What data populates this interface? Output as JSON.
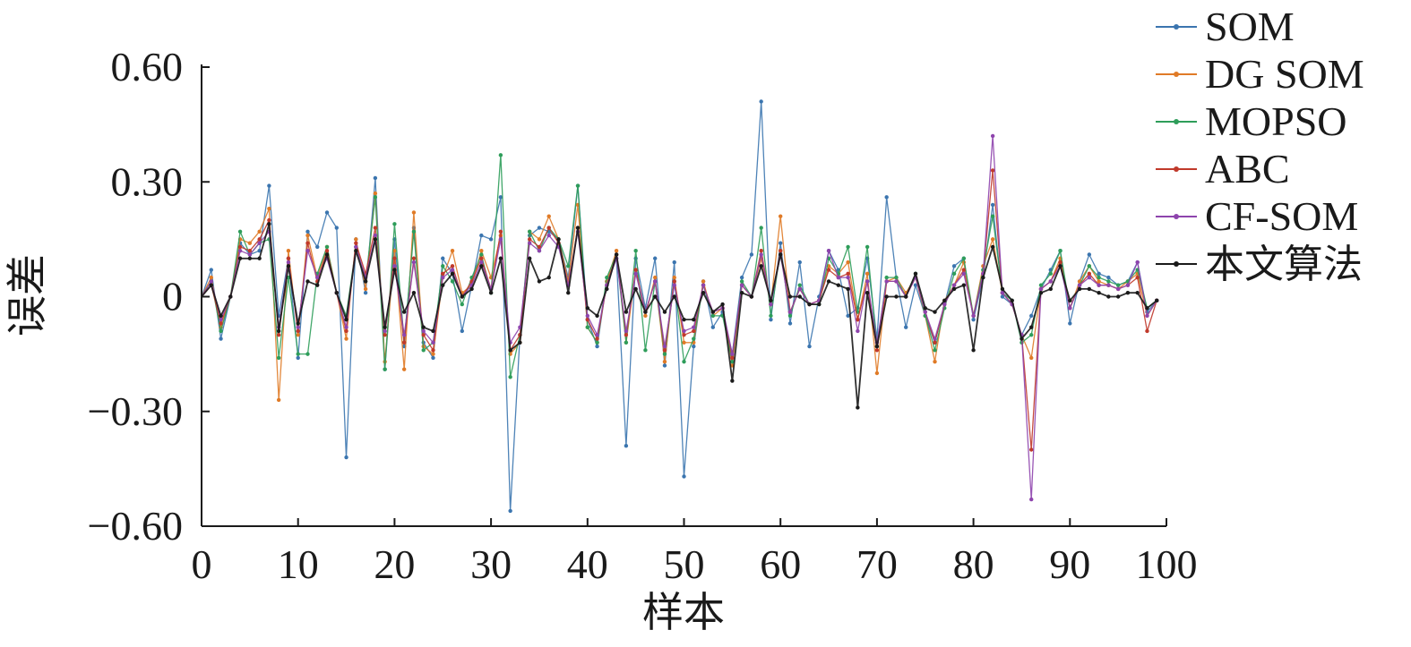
{
  "chart_data": {
    "type": "line",
    "title": "",
    "xlabel": "样本",
    "ylabel": "误差",
    "xlim": [
      0,
      100
    ],
    "ylim": [
      -0.6,
      0.6
    ],
    "xticks": [
      0,
      10,
      20,
      30,
      40,
      50,
      60,
      70,
      80,
      90,
      100
    ],
    "xtick_labels": [
      "0",
      "10",
      "20",
      "30",
      "40",
      "50",
      "60",
      "70",
      "80",
      "90",
      "100"
    ],
    "yticks": [
      0.6,
      0.3,
      0,
      -0.3,
      -0.6
    ],
    "ytick_labels": [
      "0.60",
      "0.30",
      "0",
      "−0.30",
      "−0.60"
    ],
    "grid": false,
    "legend_position": "top-right",
    "x": [
      1,
      2,
      3,
      4,
      5,
      6,
      7,
      8,
      9,
      10,
      11,
      12,
      13,
      14,
      15,
      16,
      17,
      18,
      19,
      20,
      21,
      22,
      23,
      24,
      25,
      26,
      27,
      28,
      29,
      30,
      31,
      32,
      33,
      34,
      35,
      36,
      37,
      38,
      39,
      40,
      41,
      42,
      43,
      44,
      45,
      46,
      47,
      48,
      49,
      50,
      51,
      52,
      53,
      54,
      55,
      56,
      57,
      58,
      59,
      60,
      61,
      62,
      63,
      64,
      65,
      66,
      67,
      68,
      69,
      70,
      71,
      72,
      73,
      74,
      75,
      76,
      77,
      78,
      79,
      80,
      81,
      82,
      83,
      84,
      85,
      86,
      87,
      88,
      89,
      90,
      91,
      92,
      93,
      94,
      95,
      96,
      97,
      98,
      99
    ],
    "series": [
      {
        "name": "SOM",
        "color": "#3b75af",
        "values": [
          0.07,
          -0.11,
          0.0,
          0.14,
          0.11,
          0.12,
          0.29,
          -0.05,
          0.1,
          -0.16,
          0.17,
          0.13,
          0.22,
          0.18,
          -0.42,
          0.15,
          0.01,
          0.31,
          -0.19,
          0.15,
          -0.13,
          0.18,
          -0.12,
          -0.16,
          0.1,
          0.06,
          -0.09,
          0.03,
          0.16,
          0.15,
          0.26,
          -0.56,
          -0.1,
          0.16,
          0.18,
          0.17,
          0.15,
          0.05,
          0.29,
          -0.06,
          -0.13,
          0.04,
          0.1,
          -0.39,
          0.1,
          -0.03,
          0.1,
          -0.18,
          0.09,
          -0.47,
          -0.13,
          0.04,
          -0.08,
          -0.04,
          -0.15,
          0.05,
          0.11,
          0.51,
          -0.06,
          0.14,
          -0.07,
          0.09,
          -0.13,
          0.0,
          0.12,
          0.07,
          -0.05,
          -0.03,
          0.1,
          -0.11,
          0.26,
          0.05,
          -0.08,
          0.03,
          -0.05,
          -0.12,
          -0.02,
          0.08,
          0.1,
          -0.06,
          0.05,
          0.24,
          0.0,
          -0.02,
          -0.1,
          -0.05,
          0.02,
          0.07,
          0.12,
          -0.07,
          0.04,
          0.11,
          0.06,
          0.05,
          0.03,
          0.04,
          0.09,
          -0.04,
          -0.01
        ]
      },
      {
        "name": "DG SOM",
        "color": "#e07b27",
        "values": [
          0.05,
          -0.08,
          0.0,
          0.15,
          0.14,
          0.17,
          0.23,
          -0.27,
          0.12,
          -0.1,
          0.16,
          0.05,
          0.13,
          0.01,
          -0.11,
          0.15,
          0.02,
          0.27,
          -0.17,
          0.12,
          -0.19,
          0.22,
          -0.13,
          -0.15,
          0.05,
          0.12,
          0.01,
          0.03,
          0.12,
          0.05,
          0.16,
          -0.15,
          -0.12,
          0.17,
          0.15,
          0.21,
          0.15,
          0.04,
          0.24,
          -0.08,
          -0.12,
          0.04,
          0.12,
          -0.12,
          0.07,
          -0.05,
          0.05,
          -0.17,
          0.05,
          -0.12,
          -0.12,
          0.04,
          -0.05,
          -0.03,
          -0.18,
          0.03,
          0.0,
          0.1,
          -0.02,
          0.21,
          -0.04,
          0.02,
          -0.02,
          -0.01,
          0.08,
          0.06,
          0.09,
          -0.06,
          0.06,
          -0.2,
          0.04,
          0.05,
          0.01,
          0.05,
          -0.05,
          -0.17,
          -0.01,
          0.03,
          0.09,
          -0.05,
          0.08,
          0.15,
          0.01,
          -0.02,
          -0.1,
          -0.16,
          0.02,
          0.04,
          0.1,
          -0.03,
          0.04,
          0.08,
          0.04,
          0.03,
          0.02,
          0.04,
          0.06,
          -0.05,
          -0.01
        ]
      },
      {
        "name": "MOPSO",
        "color": "#2e9d5a",
        "values": [
          0.04,
          -0.09,
          0.0,
          0.17,
          0.11,
          0.14,
          0.15,
          -0.16,
          0.05,
          -0.15,
          -0.15,
          0.06,
          0.13,
          0.01,
          -0.05,
          0.13,
          0.04,
          0.26,
          -0.19,
          0.19,
          -0.12,
          0.17,
          -0.14,
          -0.12,
          0.08,
          0.04,
          -0.02,
          0.05,
          0.11,
          0.01,
          0.37,
          -0.21,
          -0.1,
          0.17,
          0.12,
          0.18,
          0.15,
          0.08,
          0.29,
          -0.08,
          -0.12,
          0.05,
          0.11,
          -0.12,
          0.12,
          -0.14,
          0.04,
          -0.15,
          0.04,
          -0.17,
          -0.11,
          0.03,
          -0.05,
          -0.05,
          -0.17,
          0.04,
          0.0,
          0.18,
          -0.05,
          0.12,
          -0.05,
          0.03,
          -0.02,
          -0.02,
          0.1,
          0.06,
          0.13,
          -0.04,
          0.13,
          -0.13,
          0.05,
          0.05,
          0.0,
          0.06,
          -0.05,
          -0.14,
          -0.03,
          0.06,
          0.1,
          -0.05,
          0.07,
          0.21,
          0.01,
          -0.01,
          -0.12,
          -0.1,
          0.03,
          0.06,
          0.12,
          -0.03,
          0.03,
          0.08,
          0.05,
          0.04,
          0.03,
          0.04,
          0.07,
          -0.03,
          -0.01
        ]
      },
      {
        "name": "ABC",
        "color": "#c0392b",
        "values": [
          0.03,
          -0.07,
          0.0,
          0.13,
          0.12,
          0.15,
          0.2,
          -0.1,
          0.1,
          -0.09,
          0.14,
          0.04,
          0.12,
          0.01,
          -0.09,
          0.14,
          0.06,
          0.18,
          -0.1,
          0.1,
          -0.12,
          0.1,
          -0.1,
          -0.14,
          0.06,
          0.08,
          0.0,
          0.04,
          0.1,
          0.02,
          0.17,
          -0.14,
          -0.1,
          0.15,
          0.13,
          0.18,
          0.14,
          0.03,
          0.18,
          -0.06,
          -0.11,
          0.03,
          0.11,
          -0.1,
          0.07,
          -0.04,
          0.04,
          -0.14,
          0.04,
          -0.1,
          -0.09,
          0.03,
          -0.04,
          -0.03,
          -0.16,
          0.03,
          0.0,
          0.12,
          -0.02,
          0.12,
          -0.04,
          0.02,
          -0.02,
          -0.01,
          0.07,
          0.05,
          0.06,
          -0.06,
          0.04,
          -0.14,
          0.04,
          0.04,
          0.0,
          0.05,
          -0.04,
          -0.12,
          -0.02,
          0.03,
          0.07,
          -0.05,
          0.06,
          0.33,
          0.01,
          -0.02,
          -0.1,
          -0.4,
          0.02,
          0.04,
          0.09,
          -0.03,
          0.03,
          0.06,
          0.03,
          0.03,
          0.02,
          0.03,
          0.05,
          -0.09,
          -0.01
        ]
      },
      {
        "name": "CF-SOM",
        "color": "#8e44ad",
        "values": [
          0.04,
          -0.06,
          0.0,
          0.12,
          0.11,
          0.14,
          0.17,
          -0.08,
          0.09,
          -0.08,
          0.12,
          0.05,
          0.1,
          0.01,
          -0.08,
          0.13,
          0.05,
          0.16,
          -0.09,
          0.08,
          -0.1,
          0.09,
          -0.09,
          -0.12,
          0.05,
          0.07,
          0.0,
          0.03,
          0.09,
          0.02,
          0.15,
          -0.12,
          -0.08,
          0.14,
          0.12,
          0.16,
          0.13,
          0.03,
          0.17,
          -0.05,
          -0.1,
          0.03,
          0.1,
          -0.09,
          0.06,
          -0.04,
          0.04,
          -0.13,
          0.03,
          -0.09,
          -0.08,
          0.03,
          -0.04,
          -0.03,
          -0.15,
          0.03,
          0.0,
          0.11,
          -0.02,
          0.11,
          -0.04,
          0.02,
          -0.02,
          -0.01,
          0.12,
          0.05,
          0.05,
          -0.09,
          0.04,
          -0.12,
          0.04,
          0.04,
          0.0,
          0.05,
          -0.04,
          -0.11,
          -0.02,
          0.03,
          0.06,
          -0.05,
          0.06,
          0.42,
          0.01,
          -0.02,
          -0.1,
          -0.53,
          0.02,
          0.04,
          0.08,
          -0.03,
          0.03,
          0.05,
          0.03,
          0.03,
          0.02,
          0.03,
          0.09,
          -0.05,
          -0.01
        ]
      },
      {
        "name": "本文算法",
        "color": "#1a1a1a",
        "values": [
          0.03,
          -0.05,
          0.0,
          0.1,
          0.1,
          0.1,
          0.19,
          -0.09,
          0.08,
          -0.07,
          0.04,
          0.03,
          0.11,
          0.01,
          -0.06,
          0.12,
          0.04,
          0.15,
          -0.08,
          0.07,
          -0.04,
          0.01,
          -0.08,
          -0.09,
          0.03,
          0.06,
          0.0,
          0.02,
          0.08,
          0.01,
          0.1,
          -0.14,
          -0.12,
          0.1,
          0.04,
          0.05,
          0.15,
          0.01,
          0.18,
          -0.03,
          -0.05,
          0.02,
          0.11,
          -0.04,
          0.02,
          -0.04,
          0.0,
          -0.04,
          0.0,
          -0.06,
          -0.06,
          0.01,
          -0.04,
          -0.02,
          -0.22,
          0.01,
          0.0,
          0.08,
          -0.01,
          0.11,
          0.0,
          0.0,
          -0.02,
          -0.02,
          0.04,
          0.03,
          0.02,
          -0.29,
          0.01,
          -0.13,
          0.0,
          0.0,
          0.0,
          0.06,
          -0.03,
          -0.04,
          -0.01,
          0.02,
          0.03,
          -0.14,
          0.05,
          0.13,
          0.02,
          -0.01,
          -0.11,
          -0.08,
          0.01,
          0.02,
          0.08,
          -0.01,
          0.02,
          0.02,
          0.01,
          0.0,
          0.0,
          0.01,
          0.01,
          -0.03,
          -0.01
        ]
      }
    ]
  }
}
